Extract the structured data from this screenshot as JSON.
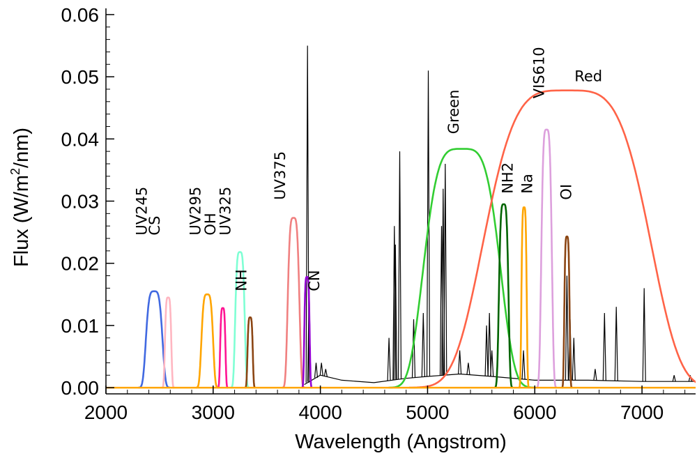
{
  "chart_data": {
    "type": "line",
    "xlabel": "Wavelength (Angstrom)",
    "ylabel_main": "Flux (W/m",
    "ylabel_sup": "2",
    "ylabel_end": "/nm)",
    "xlim": [
      2000,
      7500
    ],
    "ylim": [
      -0.001,
      0.061
    ],
    "x_ticks": [
      2000,
      3000,
      4000,
      5000,
      6000,
      7000
    ],
    "x_tick_labels": [
      "2000",
      "3000",
      "4000",
      "5000",
      "6000",
      "7000"
    ],
    "y_ticks": [
      0.0,
      0.01,
      0.02,
      0.03,
      0.04,
      0.05,
      0.06
    ],
    "y_tick_labels": [
      "0.00",
      "0.01",
      "0.02",
      "0.03",
      "0.04",
      "0.05",
      "0.06"
    ],
    "grid": false,
    "spectrum": {
      "color": "#000000",
      "continuum": [
        [
          3850,
          0.0005
        ],
        [
          4000,
          0.002
        ],
        [
          4200,
          0.0012
        ],
        [
          4500,
          0.0008
        ],
        [
          4800,
          0.0015
        ],
        [
          5000,
          0.0018
        ],
        [
          5300,
          0.0022
        ],
        [
          5600,
          0.0018
        ],
        [
          6000,
          0.0012
        ],
        [
          6500,
          0.0012
        ],
        [
          7000,
          0.001
        ],
        [
          7500,
          0.001
        ]
      ],
      "lines": [
        {
          "x": 3880,
          "y": 0.055
        },
        {
          "x": 3895,
          "y": 0.016
        },
        {
          "x": 3960,
          "y": 0.004
        },
        {
          "x": 4010,
          "y": 0.004
        },
        {
          "x": 4050,
          "y": 0.003
        },
        {
          "x": 4640,
          "y": 0.008
        },
        {
          "x": 4690,
          "y": 0.026
        },
        {
          "x": 4700,
          "y": 0.023
        },
        {
          "x": 4740,
          "y": 0.038
        },
        {
          "x": 4870,
          "y": 0.011
        },
        {
          "x": 4960,
          "y": 0.012
        },
        {
          "x": 5007,
          "y": 0.051
        },
        {
          "x": 5130,
          "y": 0.026
        },
        {
          "x": 5145,
          "y": 0.032
        },
        {
          "x": 5165,
          "y": 0.036
        },
        {
          "x": 5300,
          "y": 0.006
        },
        {
          "x": 5380,
          "y": 0.004
        },
        {
          "x": 5550,
          "y": 0.01
        },
        {
          "x": 5577,
          "y": 0.012
        },
        {
          "x": 5600,
          "y": 0.006
        },
        {
          "x": 5895,
          "y": 0.006
        },
        {
          "x": 6300,
          "y": 0.018
        },
        {
          "x": 6330,
          "y": 0.011
        },
        {
          "x": 6364,
          "y": 0.008
        },
        {
          "x": 6563,
          "y": 0.003
        },
        {
          "x": 6650,
          "y": 0.012
        },
        {
          "x": 6760,
          "y": 0.013
        },
        {
          "x": 7020,
          "y": 0.016
        },
        {
          "x": 7300,
          "y": 0.002
        },
        {
          "x": 7450,
          "y": 0.002
        }
      ]
    },
    "filters": [
      {
        "name": "UV245",
        "color": "#4169e1",
        "center": 2450,
        "width": 155,
        "peak": 0.0155
      },
      {
        "name": "CS",
        "color": "#ffb6c1",
        "center": 2580,
        "width": 60,
        "peak": 0.0145
      },
      {
        "name": "UV295",
        "color": "#ffa500",
        "center": 2945,
        "width": 110,
        "peak": 0.015
      },
      {
        "name": "OH",
        "color": "#ff1493",
        "center": 3090,
        "width": 50,
        "peak": 0.0128
      },
      {
        "name": "UV325",
        "color": "#7fffd4",
        "center": 3250,
        "width": 90,
        "peak": 0.0218
      },
      {
        "name": "NH",
        "color": "#8b4513",
        "center": 3345,
        "width": 50,
        "peak": 0.0113
      },
      {
        "name": "UV375",
        "color": "#f08080",
        "center": 3750,
        "width": 110,
        "peak": 0.0273
      },
      {
        "name": "CN",
        "color": "#9400d3",
        "center": 3875,
        "width": 50,
        "peak": 0.0178
      },
      {
        "name": "Green",
        "color": "#32cd32",
        "center": 5320,
        "width": 720,
        "peak": 0.0384
      },
      {
        "name": "NH2",
        "color": "#006400",
        "center": 5710,
        "width": 90,
        "peak": 0.0295
      },
      {
        "name": "Na",
        "color": "#ffa500",
        "center": 5900,
        "width": 50,
        "peak": 0.029
      },
      {
        "name": "VIS610",
        "color": "#dda0dd",
        "center": 6110,
        "width": 100,
        "peak": 0.0415
      },
      {
        "name": "OI",
        "color": "#8b4513",
        "center": 6300,
        "width": 50,
        "peak": 0.0243
      },
      {
        "name": "Red",
        "color": "#ff6347",
        "center": 6300,
        "width": 1550,
        "peak": 0.0478
      }
    ],
    "labels": [
      {
        "text": "UV245",
        "x": 2380,
        "y": 0.0245,
        "rotate": true
      },
      {
        "text": "CS",
        "x": 2500,
        "y": 0.0245,
        "rotate": true
      },
      {
        "text": "UV295",
        "x": 2880,
        "y": 0.0245,
        "rotate": true
      },
      {
        "text": "OH",
        "x": 3020,
        "y": 0.0245,
        "rotate": true
      },
      {
        "text": "UV325",
        "x": 3160,
        "y": 0.0245,
        "rotate": true
      },
      {
        "text": "NH",
        "x": 3310,
        "y": 0.0155,
        "rotate": true
      },
      {
        "text": "UV375",
        "x": 3670,
        "y": 0.0302,
        "rotate": true
      },
      {
        "text": "CN",
        "x": 3990,
        "y": 0.0155,
        "rotate": true
      },
      {
        "text": "Green",
        "x": 5290,
        "y": 0.0408,
        "rotate": true
      },
      {
        "text": "NH2",
        "x": 5795,
        "y": 0.0312,
        "rotate": true
      },
      {
        "text": "Na",
        "x": 5975,
        "y": 0.0312,
        "rotate": true
      },
      {
        "text": "VIS610",
        "x": 6085,
        "y": 0.0465,
        "rotate": true
      },
      {
        "text": "OI",
        "x": 6340,
        "y": 0.0302,
        "rotate": true
      },
      {
        "text": "Red",
        "x": 6500,
        "y": 0.0493,
        "rotate": false
      }
    ]
  }
}
